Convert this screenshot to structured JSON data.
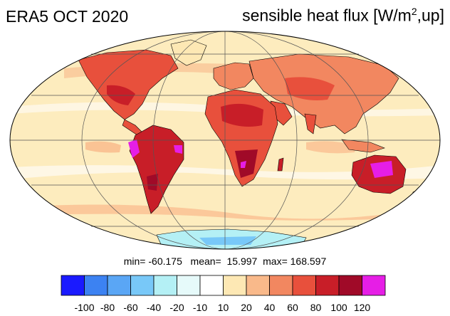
{
  "header": {
    "left_title": "ERA5 OCT 2020",
    "right_title_pre": "sensible heat flux [W/m",
    "right_title_sup": "2",
    "right_title_post": ",up]"
  },
  "stats": {
    "min_label": "min=",
    "min_value": "-60.175",
    "mean_label": "mean=",
    "mean_value": "15.997",
    "max_label": "max=",
    "max_value": "168.597"
  },
  "legend": {
    "colors": [
      "#1a1aff",
      "#3c82f2",
      "#5aa6f5",
      "#78c8f8",
      "#b4f0f5",
      "#e6fafa",
      "#ffffff",
      "#fde8b4",
      "#f9b98a",
      "#f28760",
      "#e8503c",
      "#c81e28",
      "#a00a28",
      "#e61ee6"
    ],
    "labels": [
      "-100",
      "-80",
      "-60",
      "-40",
      "-20",
      "-10",
      "10",
      "20",
      "40",
      "60",
      "80",
      "100",
      "120"
    ]
  },
  "map": {
    "projection": "mollweide",
    "ocean_fill": "#fdecbe",
    "graticule": "on",
    "coastlines": "on"
  }
}
